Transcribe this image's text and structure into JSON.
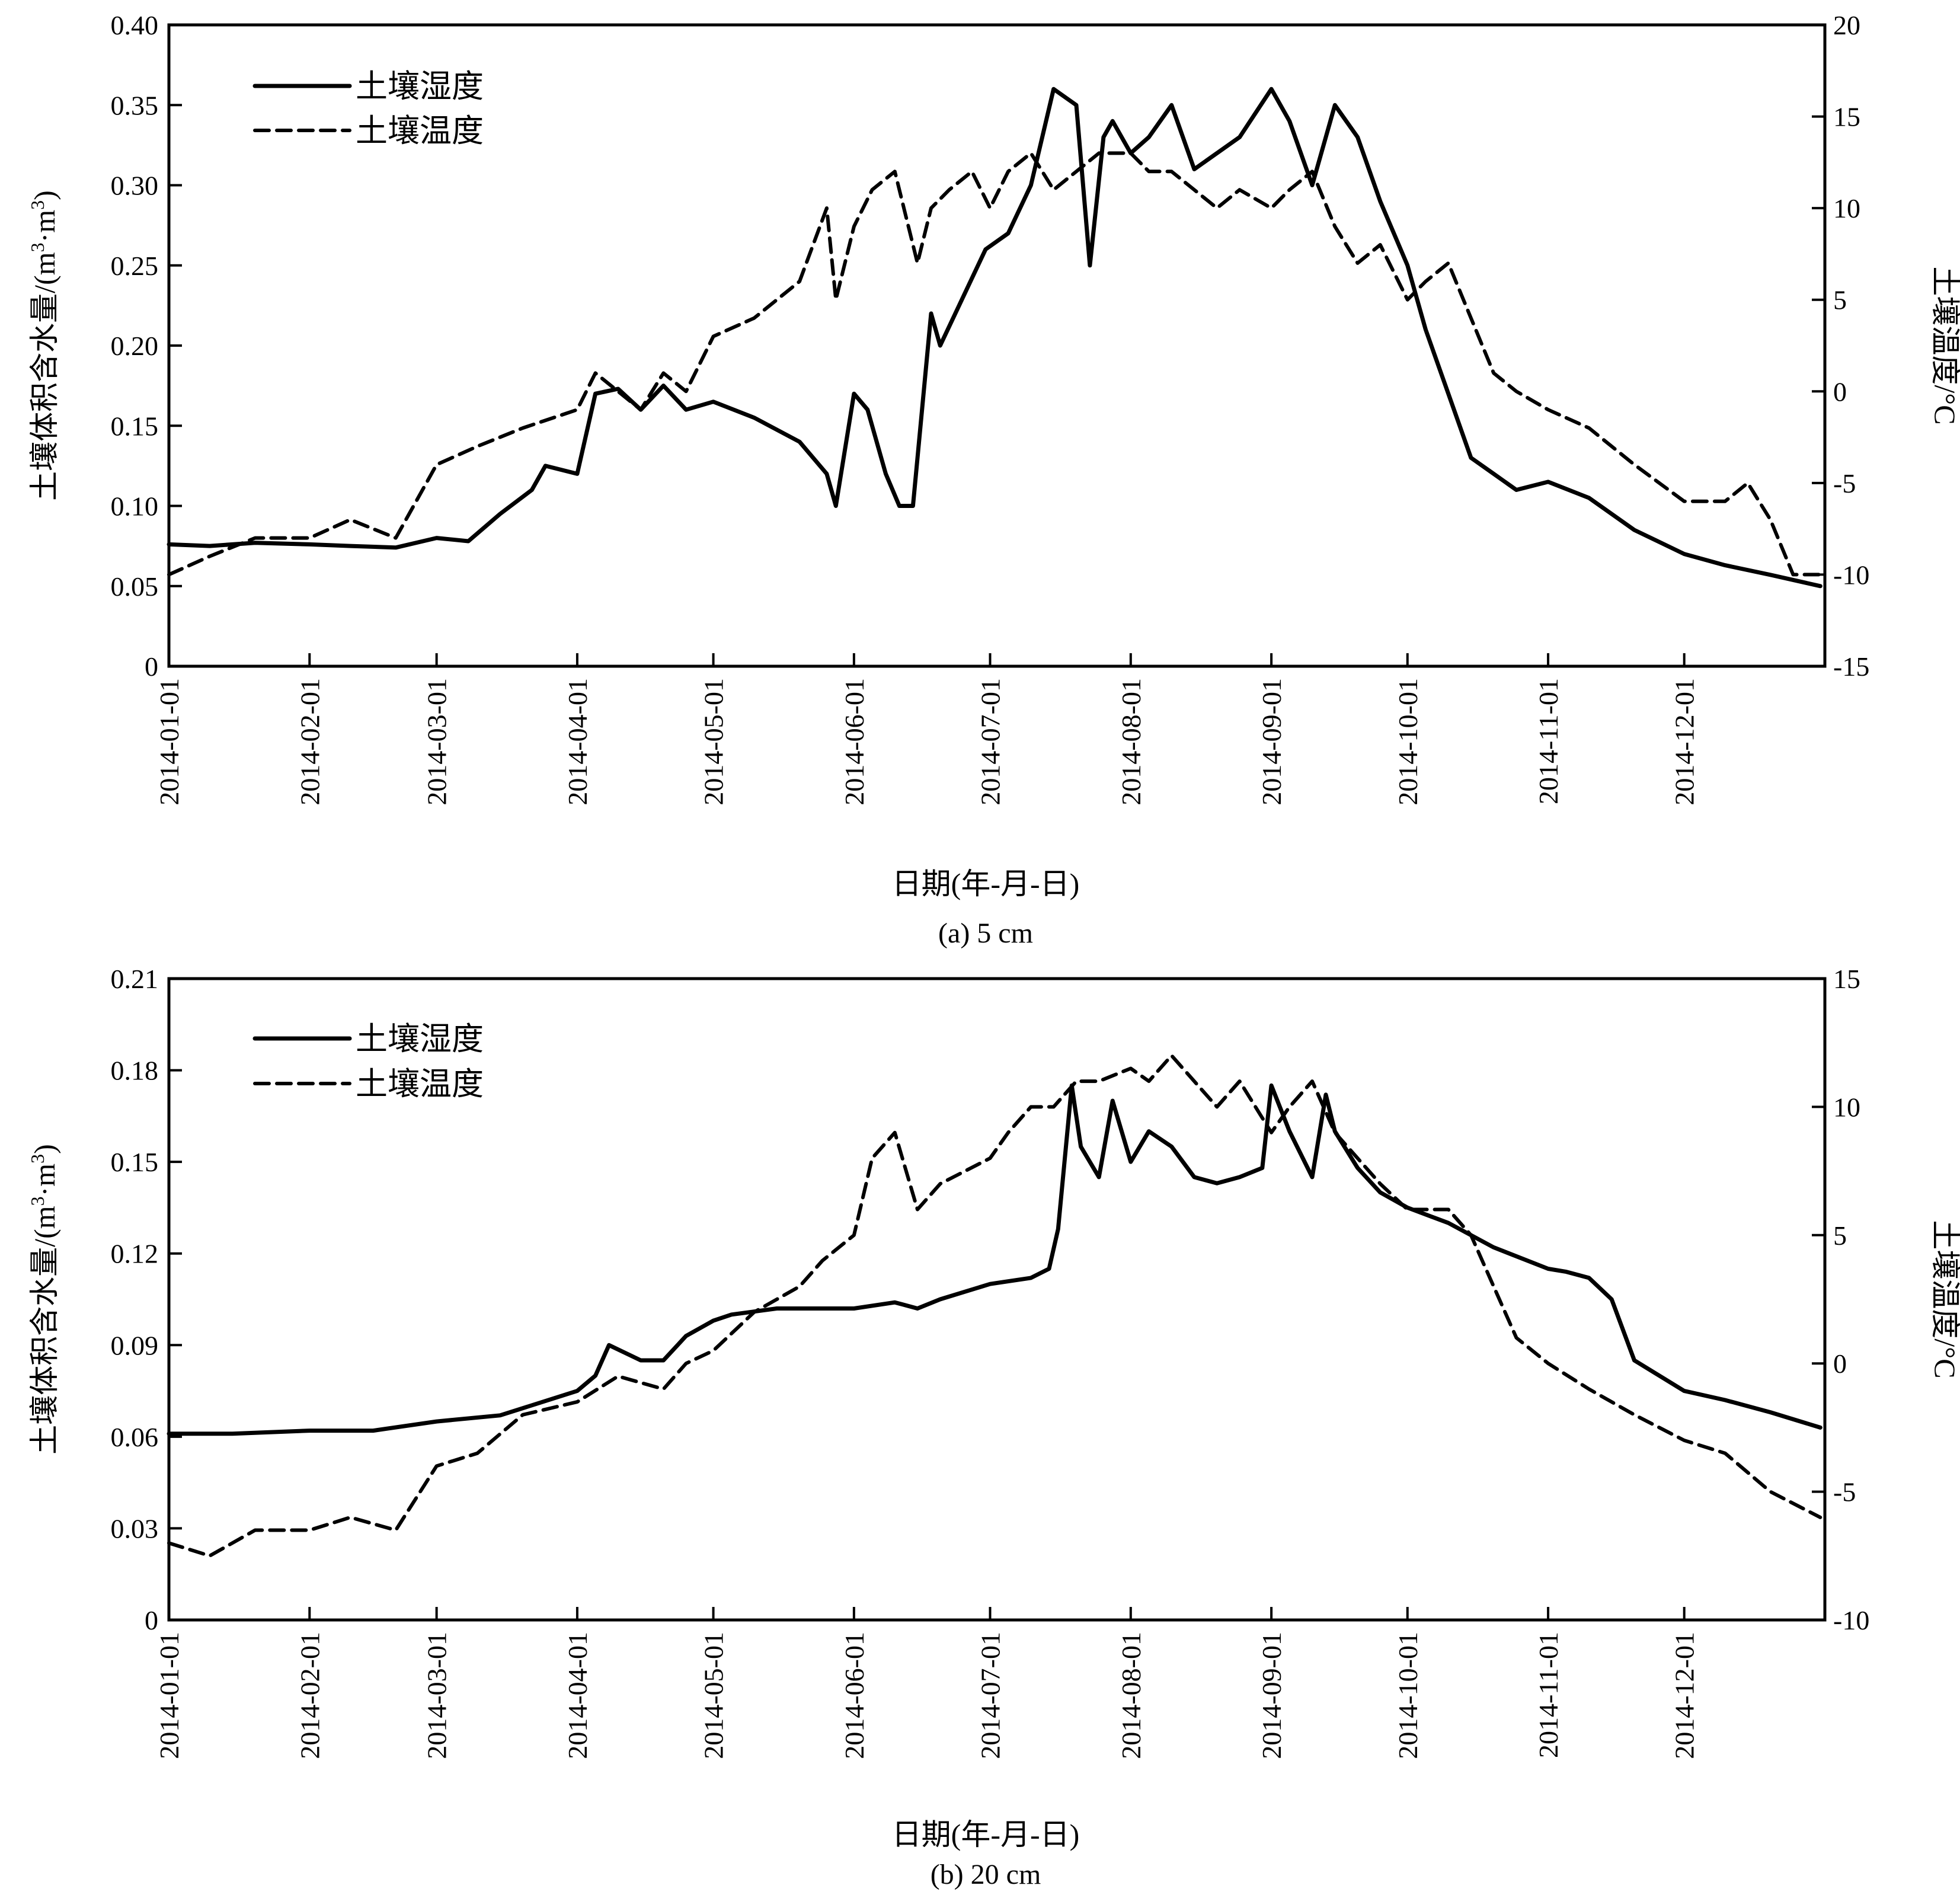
{
  "chart_data": [
    {
      "type": "line",
      "caption": "(a) 5 cm",
      "xlabel": "日期(年-月-日)",
      "ylabel_left": "土壤体积含水量/(m³·m³)",
      "ylabel_left_parts": {
        "prefix": "土壤体积含水量/(m",
        "sup1": "3",
        "mid": "·m",
        "sup2": "3",
        "suffix": ")"
      },
      "ylabel_right": "土壤温度/°C",
      "x_range": [
        "2014-01-01",
        "2014-12-31"
      ],
      "x_ticks": [
        "2014-01-01",
        "2014-02-01",
        "2014-03-01",
        "2014-04-01",
        "2014-05-01",
        "2014-06-01",
        "2014-07-01",
        "2014-08-01",
        "2014-09-01",
        "2014-10-01",
        "2014-11-01",
        "2014-12-01"
      ],
      "y_left_range": [
        0,
        0.4
      ],
      "y_left_ticks": [
        0,
        0.05,
        0.1,
        0.15,
        0.2,
        0.25,
        0.3,
        0.35,
        0.4
      ],
      "y_left_tick_labels": [
        "0",
        "0.05",
        "0.10",
        "0.15",
        "0.20",
        "0.25",
        "0.30",
        "0.35",
        "0.40"
      ],
      "y_right_range": [
        -15,
        20
      ],
      "y_right_ticks": [
        -15,
        -10,
        -5,
        0,
        5,
        10,
        15,
        20
      ],
      "y_right_tick_labels": [
        "-15",
        "-10",
        "-5",
        "0",
        "5",
        "10",
        "15",
        "20"
      ],
      "legend_position": "top-left",
      "series": [
        {
          "name": "土壤湿度",
          "axis": "left",
          "style": "solid",
          "x": [
            "2014-01-01",
            "2014-01-10",
            "2014-01-20",
            "2014-02-01",
            "2014-02-10",
            "2014-02-20",
            "2014-03-01",
            "2014-03-08",
            "2014-03-15",
            "2014-03-22",
            "2014-03-25",
            "2014-04-01",
            "2014-04-05",
            "2014-04-10",
            "2014-04-15",
            "2014-04-20",
            "2014-04-25",
            "2014-05-01",
            "2014-05-10",
            "2014-05-20",
            "2014-05-26",
            "2014-05-28",
            "2014-06-01",
            "2014-06-04",
            "2014-06-08",
            "2014-06-11",
            "2014-06-14",
            "2014-06-18",
            "2014-06-20",
            "2014-06-25",
            "2014-06-30",
            "2014-07-05",
            "2014-07-10",
            "2014-07-15",
            "2014-07-20",
            "2014-07-23",
            "2014-07-26",
            "2014-07-28",
            "2014-08-01",
            "2014-08-05",
            "2014-08-10",
            "2014-08-15",
            "2014-08-20",
            "2014-08-25",
            "2014-09-01",
            "2014-09-05",
            "2014-09-10",
            "2014-09-15",
            "2014-09-20",
            "2014-09-25",
            "2014-10-01",
            "2014-10-05",
            "2014-10-10",
            "2014-10-15",
            "2014-10-20",
            "2014-10-25",
            "2014-11-01",
            "2014-11-10",
            "2014-11-20",
            "2014-12-01",
            "2014-12-10",
            "2014-12-20",
            "2014-12-31"
          ],
          "y": [
            0.076,
            0.075,
            0.077,
            0.076,
            0.075,
            0.074,
            0.08,
            0.078,
            0.095,
            0.11,
            0.125,
            0.12,
            0.17,
            0.173,
            0.16,
            0.175,
            0.16,
            0.165,
            0.155,
            0.14,
            0.12,
            0.1,
            0.17,
            0.16,
            0.12,
            0.1,
            0.1,
            0.22,
            0.2,
            0.23,
            0.26,
            0.27,
            0.3,
            0.36,
            0.35,
            0.25,
            0.33,
            0.34,
            0.32,
            0.33,
            0.35,
            0.31,
            0.32,
            0.33,
            0.36,
            0.34,
            0.3,
            0.35,
            0.33,
            0.29,
            0.25,
            0.21,
            0.17,
            0.13,
            0.12,
            0.11,
            0.115,
            0.105,
            0.085,
            0.07,
            0.063,
            0.057,
            0.05
          ]
        },
        {
          "name": "土壤温度",
          "axis": "right",
          "style": "dashed",
          "x": [
            "2014-01-01",
            "2014-01-10",
            "2014-01-20",
            "2014-02-01",
            "2014-02-10",
            "2014-02-20",
            "2014-03-01",
            "2014-03-10",
            "2014-03-20",
            "2014-04-01",
            "2014-04-05",
            "2014-04-10",
            "2014-04-15",
            "2014-04-20",
            "2014-04-25",
            "2014-05-01",
            "2014-05-10",
            "2014-05-20",
            "2014-05-26",
            "2014-05-28",
            "2014-06-01",
            "2014-06-05",
            "2014-06-10",
            "2014-06-15",
            "2014-06-18",
            "2014-06-22",
            "2014-06-27",
            "2014-07-01",
            "2014-07-05",
            "2014-07-10",
            "2014-07-15",
            "2014-07-20",
            "2014-07-25",
            "2014-08-01",
            "2014-08-05",
            "2014-08-10",
            "2014-08-15",
            "2014-08-20",
            "2014-08-25",
            "2014-09-01",
            "2014-09-05",
            "2014-09-10",
            "2014-09-15",
            "2014-09-20",
            "2014-09-25",
            "2014-10-01",
            "2014-10-05",
            "2014-10-10",
            "2014-10-15",
            "2014-10-20",
            "2014-10-25",
            "2014-11-01",
            "2014-11-10",
            "2014-11-20",
            "2014-12-01",
            "2014-12-10",
            "2014-12-15",
            "2014-12-20",
            "2014-12-25",
            "2014-12-31"
          ],
          "y": [
            -10,
            -9,
            -8,
            -8,
            -7,
            -8,
            -4,
            -3,
            -2,
            -1,
            1,
            0,
            -1,
            1,
            0,
            3,
            4,
            6,
            10,
            5,
            9,
            11,
            12,
            7,
            10,
            11,
            12,
            10,
            12,
            13,
            11,
            12,
            13,
            13,
            12,
            12,
            11,
            10,
            11,
            10,
            11,
            12,
            9,
            7,
            8,
            5,
            6,
            7,
            4,
            1,
            0,
            -1,
            -2,
            -4,
            -6,
            -6,
            -5,
            -7,
            -10,
            -10
          ]
        }
      ]
    },
    {
      "type": "line",
      "caption": "(b) 20 cm",
      "xlabel": "日期(年-月-日)",
      "ylabel_left": "土壤体积含水量/(m³·m³)",
      "ylabel_left_parts": {
        "prefix": "土壤体积含水量/(m",
        "sup1": "3",
        "mid": "·m",
        "sup2": "3",
        "suffix": ")"
      },
      "ylabel_right": "土壤温度/°C",
      "x_range": [
        "2014-01-01",
        "2014-12-31"
      ],
      "x_ticks": [
        "2014-01-01",
        "2014-02-01",
        "2014-03-01",
        "2014-04-01",
        "2014-05-01",
        "2014-06-01",
        "2014-07-01",
        "2014-08-01",
        "2014-09-01",
        "2014-10-01",
        "2014-11-01",
        "2014-12-01"
      ],
      "y_left_range": [
        0,
        0.21
      ],
      "y_left_ticks": [
        0,
        0.03,
        0.06,
        0.09,
        0.12,
        0.15,
        0.18,
        0.21
      ],
      "y_left_tick_labels": [
        "0",
        "0.03",
        "0.06",
        "0.09",
        "0.12",
        "0.15",
        "0.18",
        "0.21"
      ],
      "y_right_range": [
        -10,
        15
      ],
      "y_right_ticks": [
        -10,
        -5,
        0,
        5,
        10,
        15
      ],
      "y_right_tick_labels": [
        "-10",
        "-5",
        "0",
        "5",
        "10",
        "15"
      ],
      "legend_position": "top-left",
      "series": [
        {
          "name": "土壤湿度",
          "axis": "left",
          "style": "solid",
          "x": [
            "2014-01-01",
            "2014-01-15",
            "2014-02-01",
            "2014-02-15",
            "2014-03-01",
            "2014-03-15",
            "2014-04-01",
            "2014-04-05",
            "2014-04-08",
            "2014-04-15",
            "2014-04-20",
            "2014-04-25",
            "2014-05-01",
            "2014-05-05",
            "2014-05-15",
            "2014-05-25",
            "2014-06-01",
            "2014-06-10",
            "2014-06-15",
            "2014-06-20",
            "2014-07-01",
            "2014-07-10",
            "2014-07-14",
            "2014-07-16",
            "2014-07-19",
            "2014-07-21",
            "2014-07-25",
            "2014-07-28",
            "2014-08-01",
            "2014-08-05",
            "2014-08-10",
            "2014-08-15",
            "2014-08-20",
            "2014-08-25",
            "2014-08-30",
            "2014-09-01",
            "2014-09-05",
            "2014-09-10",
            "2014-09-13",
            "2014-09-15",
            "2014-09-20",
            "2014-09-25",
            "2014-10-01",
            "2014-10-10",
            "2014-10-20",
            "2014-11-01",
            "2014-11-05",
            "2014-11-10",
            "2014-11-15",
            "2014-11-20",
            "2014-12-01",
            "2014-12-10",
            "2014-12-20",
            "2014-12-31"
          ],
          "y": [
            0.061,
            0.061,
            0.062,
            0.062,
            0.065,
            0.067,
            0.075,
            0.08,
            0.09,
            0.085,
            0.085,
            0.093,
            0.098,
            0.1,
            0.102,
            0.102,
            0.102,
            0.104,
            0.102,
            0.105,
            0.11,
            0.112,
            0.115,
            0.128,
            0.175,
            0.155,
            0.145,
            0.17,
            0.15,
            0.16,
            0.155,
            0.145,
            0.143,
            0.145,
            0.148,
            0.175,
            0.16,
            0.145,
            0.172,
            0.16,
            0.148,
            0.14,
            0.135,
            0.13,
            0.122,
            0.115,
            0.114,
            0.112,
            0.105,
            0.085,
            0.075,
            0.072,
            0.068,
            0.063
          ]
        },
        {
          "name": "土壤温度",
          "axis": "right",
          "style": "dashed",
          "x": [
            "2014-01-01",
            "2014-01-10",
            "2014-01-20",
            "2014-02-01",
            "2014-02-10",
            "2014-02-20",
            "2014-03-01",
            "2014-03-10",
            "2014-03-20",
            "2014-04-01",
            "2014-04-10",
            "2014-04-20",
            "2014-04-25",
            "2014-05-01",
            "2014-05-10",
            "2014-05-20",
            "2014-05-25",
            "2014-06-01",
            "2014-06-05",
            "2014-06-10",
            "2014-06-15",
            "2014-06-20",
            "2014-07-01",
            "2014-07-05",
            "2014-07-10",
            "2014-07-15",
            "2014-07-20",
            "2014-07-25",
            "2014-08-01",
            "2014-08-05",
            "2014-08-10",
            "2014-08-15",
            "2014-08-20",
            "2014-08-25",
            "2014-09-01",
            "2014-09-05",
            "2014-09-10",
            "2014-09-15",
            "2014-09-20",
            "2014-09-25",
            "2014-10-01",
            "2014-10-10",
            "2014-10-15",
            "2014-10-20",
            "2014-10-25",
            "2014-11-01",
            "2014-11-10",
            "2014-11-20",
            "2014-12-01",
            "2014-12-10",
            "2014-12-20",
            "2014-12-31"
          ],
          "y": [
            -7,
            -7.5,
            -6.5,
            -6.5,
            -6,
            -6.5,
            -4,
            -3.5,
            -2,
            -1.5,
            -0.5,
            -1,
            0,
            0.5,
            2,
            3,
            4,
            5,
            8,
            9,
            6,
            7,
            8,
            9,
            10,
            10,
            11,
            11,
            11.5,
            11,
            12,
            11,
            10,
            11,
            9,
            10,
            11,
            9,
            8,
            7,
            6,
            6,
            5,
            3,
            1,
            0,
            -1,
            -2,
            -3,
            -3.5,
            -5,
            -6
          ]
        }
      ]
    }
  ]
}
